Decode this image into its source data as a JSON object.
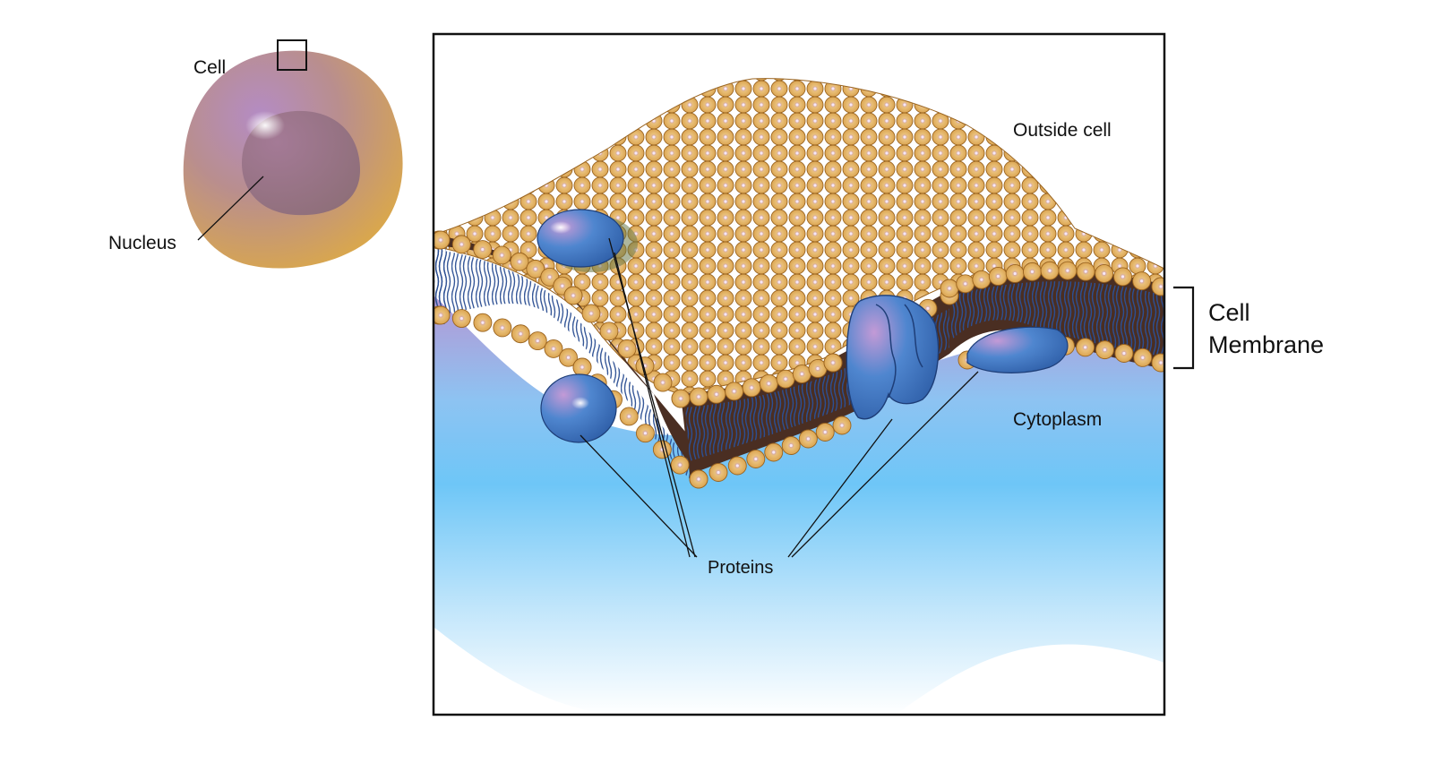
{
  "labels": {
    "cell": "Cell",
    "nucleus": "Nucleus",
    "outside_cell": "Outside cell",
    "cytoplasm": "Cytoplasm",
    "proteins": "Proteins",
    "cell_membrane_line1": "Cell",
    "cell_membrane_line2": "Membrane"
  },
  "colors": {
    "cell_body": "#D9A64E",
    "cell_purple": "#A77FB0",
    "nucleus": "#9A7589",
    "phospholipid_head": "#E8B866",
    "head_outline": "#8A5A1E",
    "membrane_core": "#4A2E22",
    "tail_blue": "#2E4E8C",
    "protein_blue": "#3E7CC7",
    "cytoplasm_blue": "#7CCBF5",
    "cytoplasm_purple": "#B69AD6",
    "frame": "#000000"
  }
}
